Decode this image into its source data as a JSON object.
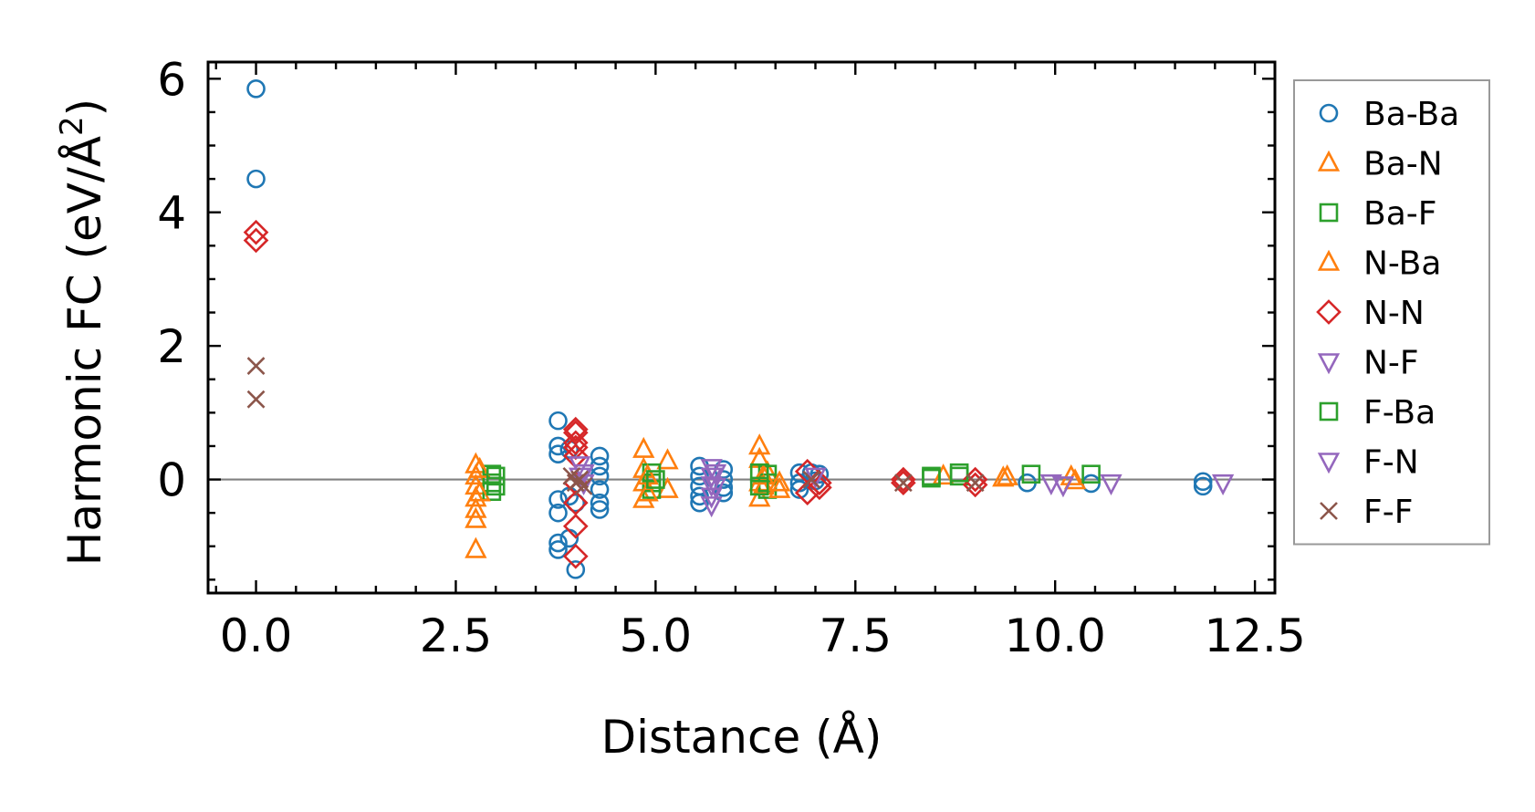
{
  "chart_data": {
    "type": "scatter",
    "xlabel": "Distance (Å)",
    "ylabel_main": "Harmonic FC (eV/Å",
    "ylabel_sup": "2",
    "ylabel_close": ")",
    "xlim": [
      -0.6,
      12.75
    ],
    "ylim": [
      -1.7,
      6.25
    ],
    "xticks": [
      0.0,
      2.5,
      5.0,
      7.5,
      10.0,
      12.5
    ],
    "xtick_labels": [
      "0.0",
      "2.5",
      "5.0",
      "7.5",
      "10.0",
      "12.5"
    ],
    "yticks": [
      0,
      2,
      4,
      6
    ],
    "ytick_labels": [
      "0",
      "2",
      "4",
      "6"
    ],
    "zero_line": 0,
    "legend_position": "right-outside",
    "series": [
      {
        "name": "Ba-Ba",
        "marker": "circle",
        "color": "#1f77b4",
        "points": [
          [
            0,
            5.85
          ],
          [
            0,
            4.5
          ],
          [
            3.78,
            0.88
          ],
          [
            3.78,
            0.5
          ],
          [
            3.78,
            0.38
          ],
          [
            3.78,
            -0.3
          ],
          [
            3.78,
            -0.5
          ],
          [
            3.78,
            -0.95
          ],
          [
            3.78,
            -1.05
          ],
          [
            3.92,
            0.45
          ],
          [
            3.92,
            -0.25
          ],
          [
            3.92,
            -0.88
          ],
          [
            4.0,
            -1.35
          ],
          [
            4.0,
            -0.35
          ],
          [
            4.3,
            0.35
          ],
          [
            4.3,
            0.2
          ],
          [
            4.3,
            0.05
          ],
          [
            4.3,
            -0.15
          ],
          [
            4.3,
            -0.35
          ],
          [
            4.3,
            -0.45
          ],
          [
            5.55,
            0.2
          ],
          [
            5.55,
            0.05
          ],
          [
            5.55,
            -0.1
          ],
          [
            5.55,
            -0.25
          ],
          [
            5.55,
            -0.35
          ],
          [
            5.85,
            0.15
          ],
          [
            5.85,
            0.0
          ],
          [
            5.85,
            -0.12
          ],
          [
            5.85,
            -0.2
          ],
          [
            6.8,
            0.1
          ],
          [
            6.8,
            -0.05
          ],
          [
            6.8,
            -0.15
          ],
          [
            6.95,
            0.1
          ],
          [
            7.0,
            -0.02
          ],
          [
            7.05,
            0.08
          ],
          [
            9.65,
            -0.05
          ],
          [
            10.45,
            -0.06
          ],
          [
            11.85,
            -0.03
          ],
          [
            11.85,
            -0.1
          ]
        ]
      },
      {
        "name": "Ba-N",
        "marker": "triangle-up",
        "color": "#ff7f0e",
        "points": [
          [
            2.75,
            0.22
          ],
          [
            2.75,
            0.05
          ],
          [
            2.75,
            -0.1
          ],
          [
            2.75,
            -0.28
          ],
          [
            2.75,
            -0.45
          ],
          [
            2.75,
            -0.6
          ],
          [
            2.75,
            -1.05
          ],
          [
            4.85,
            0.45
          ],
          [
            4.85,
            0.15
          ],
          [
            4.85,
            -0.05
          ],
          [
            4.85,
            -0.3
          ],
          [
            5.15,
            0.28
          ],
          [
            5.15,
            -0.15
          ],
          [
            6.3,
            0.5
          ],
          [
            6.3,
            0.3
          ],
          [
            6.3,
            -0.05
          ],
          [
            6.3,
            -0.28
          ],
          [
            6.4,
            0.1
          ],
          [
            8.6,
            0.05
          ],
          [
            9.35,
            0.02
          ],
          [
            10.2,
            0.04
          ],
          [
            10.25,
            -0.02
          ]
        ]
      },
      {
        "name": "Ba-F",
        "marker": "square",
        "color": "#2ca02c",
        "points": [
          [
            2.95,
            0.08
          ],
          [
            2.95,
            -0.05
          ],
          [
            2.95,
            -0.18
          ],
          [
            4.95,
            0.1
          ],
          [
            4.95,
            -0.05
          ],
          [
            4.95,
            -0.15
          ],
          [
            6.4,
            0.08
          ],
          [
            6.4,
            -0.05
          ],
          [
            6.4,
            -0.15
          ],
          [
            8.45,
            0.02
          ],
          [
            8.8,
            0.05
          ],
          [
            9.7,
            0.08
          ],
          [
            10.45,
            0.08
          ]
        ]
      },
      {
        "name": "N-Ba",
        "marker": "triangle-up",
        "color": "#ff7f0e",
        "points": [
          [
            2.8,
            0.15
          ],
          [
            2.8,
            -0.2
          ],
          [
            4.9,
            0.05
          ],
          [
            4.9,
            -0.2
          ],
          [
            6.35,
            0.05
          ],
          [
            6.35,
            -0.1
          ],
          [
            6.55,
            -0.05
          ],
          [
            6.55,
            -0.15
          ],
          [
            9.4,
            0.04
          ]
        ]
      },
      {
        "name": "N-N",
        "marker": "diamond",
        "color": "#d62728",
        "points": [
          [
            0,
            3.7
          ],
          [
            0,
            3.58
          ],
          [
            4.0,
            0.75
          ],
          [
            4.0,
            0.7
          ],
          [
            4.0,
            0.55
          ],
          [
            4.0,
            0.48
          ],
          [
            4.0,
            0.35
          ],
          [
            4.0,
            -0.35
          ],
          [
            4.0,
            -0.7
          ],
          [
            4.0,
            -1.15
          ],
          [
            4.0,
            -0.05
          ],
          [
            6.9,
            0.12
          ],
          [
            6.9,
            -0.2
          ],
          [
            7.05,
            -0.05
          ],
          [
            7.05,
            -0.12
          ],
          [
            8.1,
            0.0
          ],
          [
            8.1,
            -0.05
          ],
          [
            9.0,
            0.0
          ],
          [
            9.0,
            -0.08
          ]
        ]
      },
      {
        "name": "N-F",
        "marker": "triangle-down",
        "color": "#9467bd",
        "points": [
          [
            4.05,
            0.22
          ],
          [
            4.05,
            0.05
          ],
          [
            5.7,
            0.18
          ],
          [
            5.7,
            0.05
          ],
          [
            5.7,
            -0.08
          ],
          [
            5.7,
            -0.25
          ],
          [
            5.7,
            -0.38
          ],
          [
            7.0,
            0.05
          ],
          [
            10.7,
            -0.05
          ]
        ]
      },
      {
        "name": "F-Ba",
        "marker": "square",
        "color": "#2ca02c",
        "points": [
          [
            3.0,
            0.05
          ],
          [
            3.0,
            -0.1
          ],
          [
            5.0,
            0.0
          ],
          [
            6.3,
            0.1
          ],
          [
            6.3,
            -0.1
          ],
          [
            8.45,
            0.05
          ],
          [
            8.8,
            0.1
          ]
        ]
      },
      {
        "name": "F-N",
        "marker": "triangle-down",
        "color": "#9467bd",
        "points": [
          [
            4.1,
            0.1
          ],
          [
            4.1,
            -0.05
          ],
          [
            5.75,
            0.1
          ],
          [
            5.75,
            -0.1
          ],
          [
            9.95,
            -0.05
          ],
          [
            10.1,
            -0.08
          ],
          [
            12.1,
            -0.05
          ]
        ]
      },
      {
        "name": "F-F",
        "marker": "x",
        "color": "#8c564b",
        "points": [
          [
            0,
            1.7
          ],
          [
            0,
            1.2
          ],
          [
            3.95,
            0.05
          ],
          [
            4.0,
            -0.05
          ],
          [
            4.05,
            0.0
          ],
          [
            4.1,
            -0.1
          ],
          [
            6.95,
            0.0
          ],
          [
            8.1,
            -0.05
          ],
          [
            9.0,
            -0.05
          ]
        ]
      }
    ]
  }
}
